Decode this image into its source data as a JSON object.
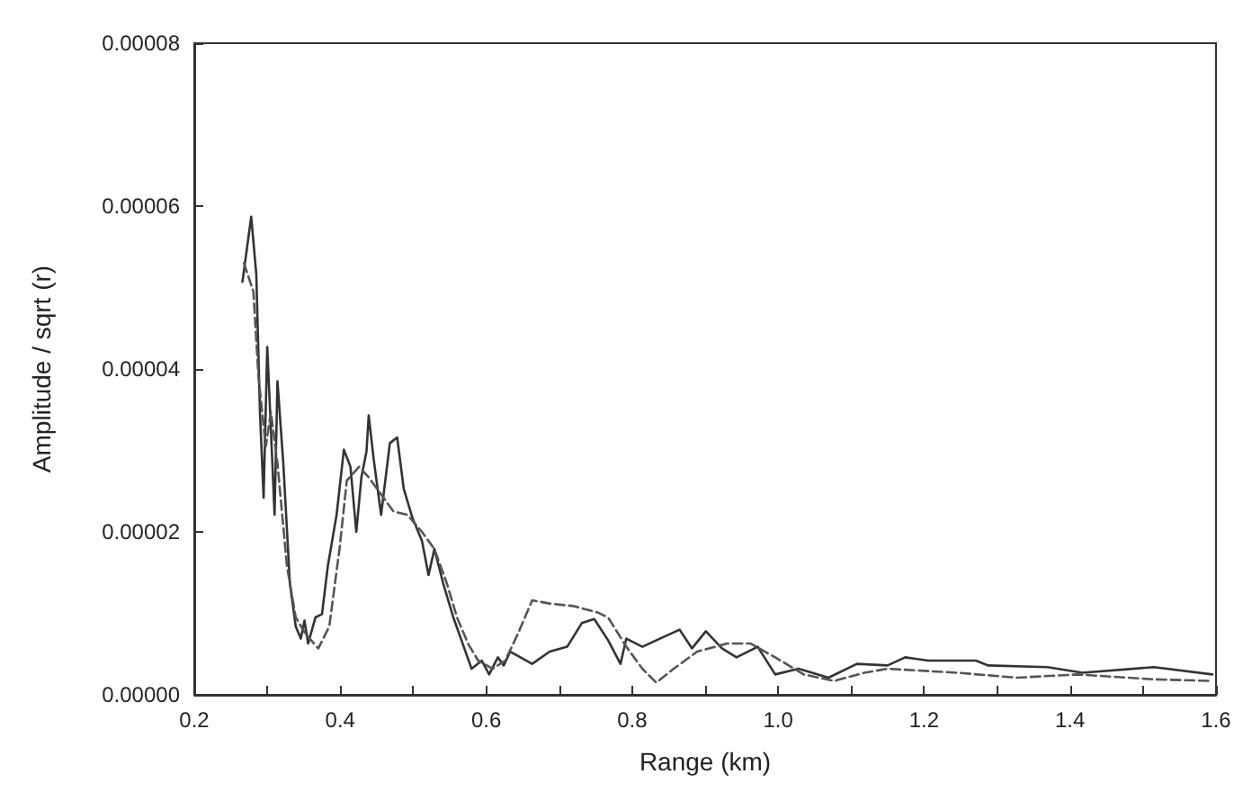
{
  "chart_data": {
    "type": "line",
    "xlabel": "Range (km)",
    "ylabel": "Amplitude / sqrt (r)",
    "xlim": [
      0.2,
      1.6
    ],
    "ylim": [
      0,
      8e-05
    ],
    "xticks": [
      {
        "value": 0.2,
        "label": "0.2"
      },
      {
        "value": 0.3,
        "label": null
      },
      {
        "value": 0.4,
        "label": "0.4"
      },
      {
        "value": 0.5,
        "label": null
      },
      {
        "value": 0.6,
        "label": "0.6"
      },
      {
        "value": 0.7,
        "label": null
      },
      {
        "value": 0.8,
        "label": "0.8"
      },
      {
        "value": 0.9,
        "label": null
      },
      {
        "value": 1.0,
        "label": "1.0"
      },
      {
        "value": 1.1,
        "label": null
      },
      {
        "value": 1.2,
        "label": "1.2"
      },
      {
        "value": 1.3,
        "label": null
      },
      {
        "value": 1.4,
        "label": "1.4"
      },
      {
        "value": 1.5,
        "label": null
      },
      {
        "value": 1.6,
        "label": "1.6"
      }
    ],
    "yticks": [
      {
        "value": 0,
        "label": "0.00000"
      },
      {
        "value": 2e-05,
        "label": "0.00002"
      },
      {
        "value": 4e-05,
        "label": "0.00004"
      },
      {
        "value": 6e-05,
        "label": "0.00006"
      },
      {
        "value": 8e-05,
        "label": "0.00008"
      }
    ],
    "grid": false,
    "marker": "none",
    "series": [
      {
        "color": "#333333",
        "line_style": "solid",
        "x": [
          0.266,
          0.278,
          0.285,
          0.29,
          0.295,
          0.3,
          0.305,
          0.31,
          0.314,
          0.322,
          0.331,
          0.339,
          0.346,
          0.351,
          0.356,
          0.366,
          0.375,
          0.383,
          0.395,
          0.405,
          0.414,
          0.422,
          0.429,
          0.436,
          0.439,
          0.446,
          0.456,
          0.468,
          0.478,
          0.487,
          0.499,
          0.512,
          0.521,
          0.529,
          0.541,
          0.555,
          0.57,
          0.58,
          0.594,
          0.604,
          0.616,
          0.624,
          0.633,
          0.663,
          0.687,
          0.711,
          0.731,
          0.748,
          0.767,
          0.784,
          0.792,
          0.814,
          0.838,
          0.865,
          0.882,
          0.901,
          0.923,
          0.943,
          0.972,
          0.996,
          1.028,
          1.069,
          1.108,
          1.15,
          1.174,
          1.206,
          1.271,
          1.288,
          1.369,
          1.417,
          1.515,
          1.595
        ],
        "values": [
          5.07e-05,
          5.87e-05,
          5.16e-05,
          3.47e-05,
          2.42e-05,
          4.27e-05,
          3.26e-05,
          2.21e-05,
          3.85e-05,
          2.84e-05,
          1.37e-05,
          8.4e-06,
          6.9e-06,
          9.1e-06,
          6.3e-06,
          9.5e-06,
          9.9e-06,
          1.58e-05,
          2.21e-05,
          3.01e-05,
          2.8e-05,
          2e-05,
          2.67e-05,
          2.99e-05,
          3.43e-05,
          2.88e-05,
          2.21e-05,
          3.09e-05,
          3.16e-05,
          2.53e-05,
          2.17e-05,
          1.89e-05,
          1.47e-05,
          1.79e-05,
          1.37e-05,
          9.5e-06,
          5.7e-06,
          3.2e-06,
          4.2e-06,
          2.5e-06,
          4.6e-06,
          3.6e-06,
          5.3e-06,
          3.8e-06,
          5.3e-06,
          5.9e-06,
          8.8e-06,
          9.3e-06,
          6.7e-06,
          3.8e-06,
          6.9e-06,
          5.9e-06,
          6.9e-06,
          8e-06,
          5.7e-06,
          7.8e-06,
          5.7e-06,
          4.6e-06,
          5.9e-06,
          2.5e-06,
          3.2e-06,
          2.1e-06,
          3.8e-06,
          3.6e-06,
          4.6e-06,
          4.2e-06,
          4.2e-06,
          3.6e-06,
          3.4e-06,
          2.7e-06,
          3.4e-06,
          2.5e-06
        ]
      },
      {
        "color": "#555555",
        "line_style": "dashed",
        "x": [
          0.268,
          0.281,
          0.288,
          0.298,
          0.305,
          0.314,
          0.327,
          0.339,
          0.353,
          0.37,
          0.385,
          0.399,
          0.409,
          0.426,
          0.439,
          0.456,
          0.473,
          0.492,
          0.512,
          0.529,
          0.546,
          0.56,
          0.575,
          0.589,
          0.609,
          0.626,
          0.643,
          0.663,
          0.687,
          0.719,
          0.753,
          0.767,
          0.792,
          0.814,
          0.833,
          0.857,
          0.889,
          0.93,
          0.962,
          0.996,
          1.035,
          1.077,
          1.118,
          1.15,
          1.247,
          1.327,
          1.41,
          1.515,
          1.595
        ],
        "values": [
          5.3e-05,
          4.95e-05,
          3.9e-05,
          3.05e-05,
          3.47e-05,
          2.84e-05,
          1.58e-05,
          9.5e-06,
          7.4e-06,
          5.7e-06,
          8.4e-06,
          1.79e-05,
          2.63e-05,
          2.8e-05,
          2.67e-05,
          2.46e-05,
          2.25e-05,
          2.21e-05,
          2e-05,
          1.79e-05,
          1.37e-05,
          9.5e-06,
          6.3e-06,
          4.2e-06,
          3.2e-06,
          4.2e-06,
          7.4e-06,
          1.16e-05,
          1.12e-05,
          1.09e-05,
          1.01e-05,
          9.5e-06,
          5.9e-06,
          3.2e-06,
          1.5e-06,
          3.2e-06,
          5.3e-06,
          6.3e-06,
          6.3e-06,
          4.6e-06,
          2.5e-06,
          1.7e-06,
          2.7e-06,
          3.2e-06,
          2.7e-06,
          2.1e-06,
          2.5e-06,
          1.9e-06,
          1.7e-06
        ]
      }
    ]
  }
}
